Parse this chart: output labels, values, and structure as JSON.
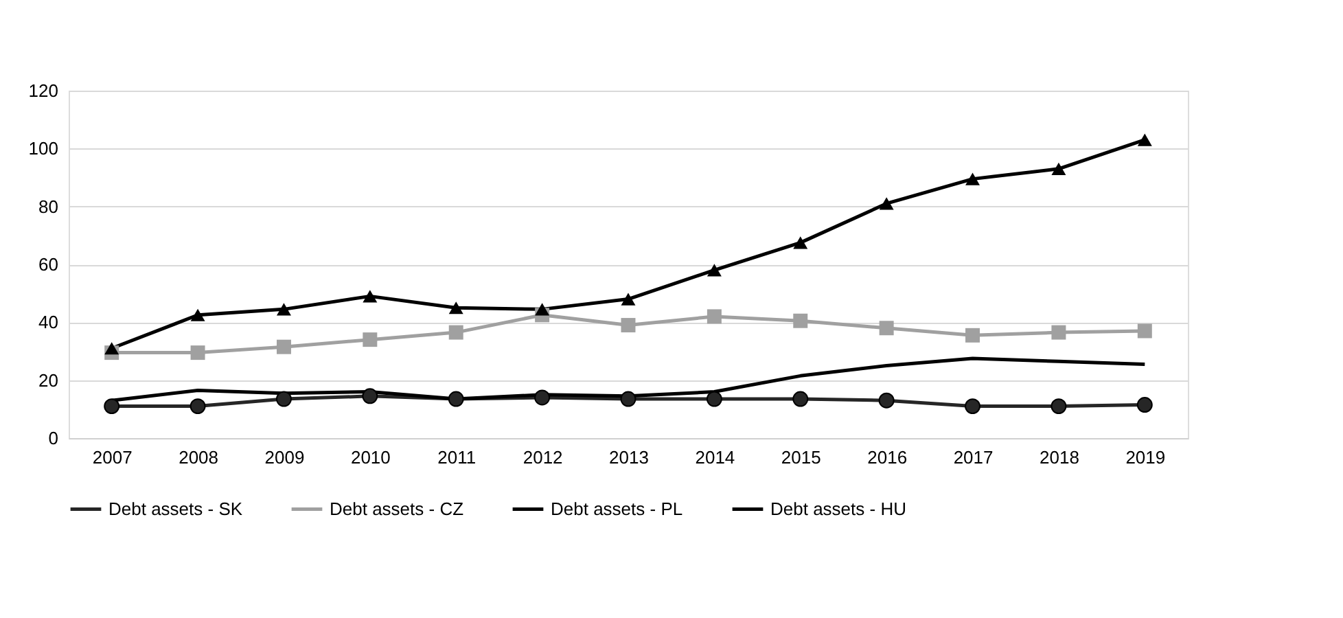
{
  "chart_data": {
    "type": "line",
    "categories": [
      "2007",
      "2008",
      "2009",
      "2010",
      "2011",
      "2012",
      "2013",
      "2014",
      "2015",
      "2016",
      "2017",
      "2018",
      "2019"
    ],
    "series": [
      {
        "name": "Debt assets - SK",
        "color": "#262626",
        "marker": "circle",
        "values": [
          11,
          11,
          13.5,
          14.5,
          13.5,
          14,
          13.5,
          13.5,
          13.5,
          13,
          11,
          11,
          11.5
        ]
      },
      {
        "name": "Debt assets - CZ",
        "color": "#a0a0a0",
        "marker": "square",
        "values": [
          29.5,
          29.5,
          31.5,
          34,
          36.5,
          42.5,
          39,
          42,
          40.5,
          38,
          35.5,
          36.5,
          37
        ]
      },
      {
        "name": "Debt assets - PL",
        "color": "#000000",
        "marker": "triangle",
        "values": [
          31,
          42.5,
          44.5,
          49,
          45,
          44.5,
          48,
          58,
          67.5,
          81,
          89.5,
          93,
          103
        ]
      },
      {
        "name": "Debt assets - HU",
        "color": "#000000",
        "marker": "none",
        "values": [
          13,
          16.5,
          15.5,
          16,
          13.5,
          15,
          14.5,
          16,
          21.5,
          25,
          27.5,
          26.5,
          25.5
        ]
      }
    ],
    "ylim": [
      0,
      120
    ],
    "yticks": [
      0,
      20,
      40,
      60,
      80,
      100,
      120
    ],
    "grid": "y",
    "legend": "bottom"
  }
}
